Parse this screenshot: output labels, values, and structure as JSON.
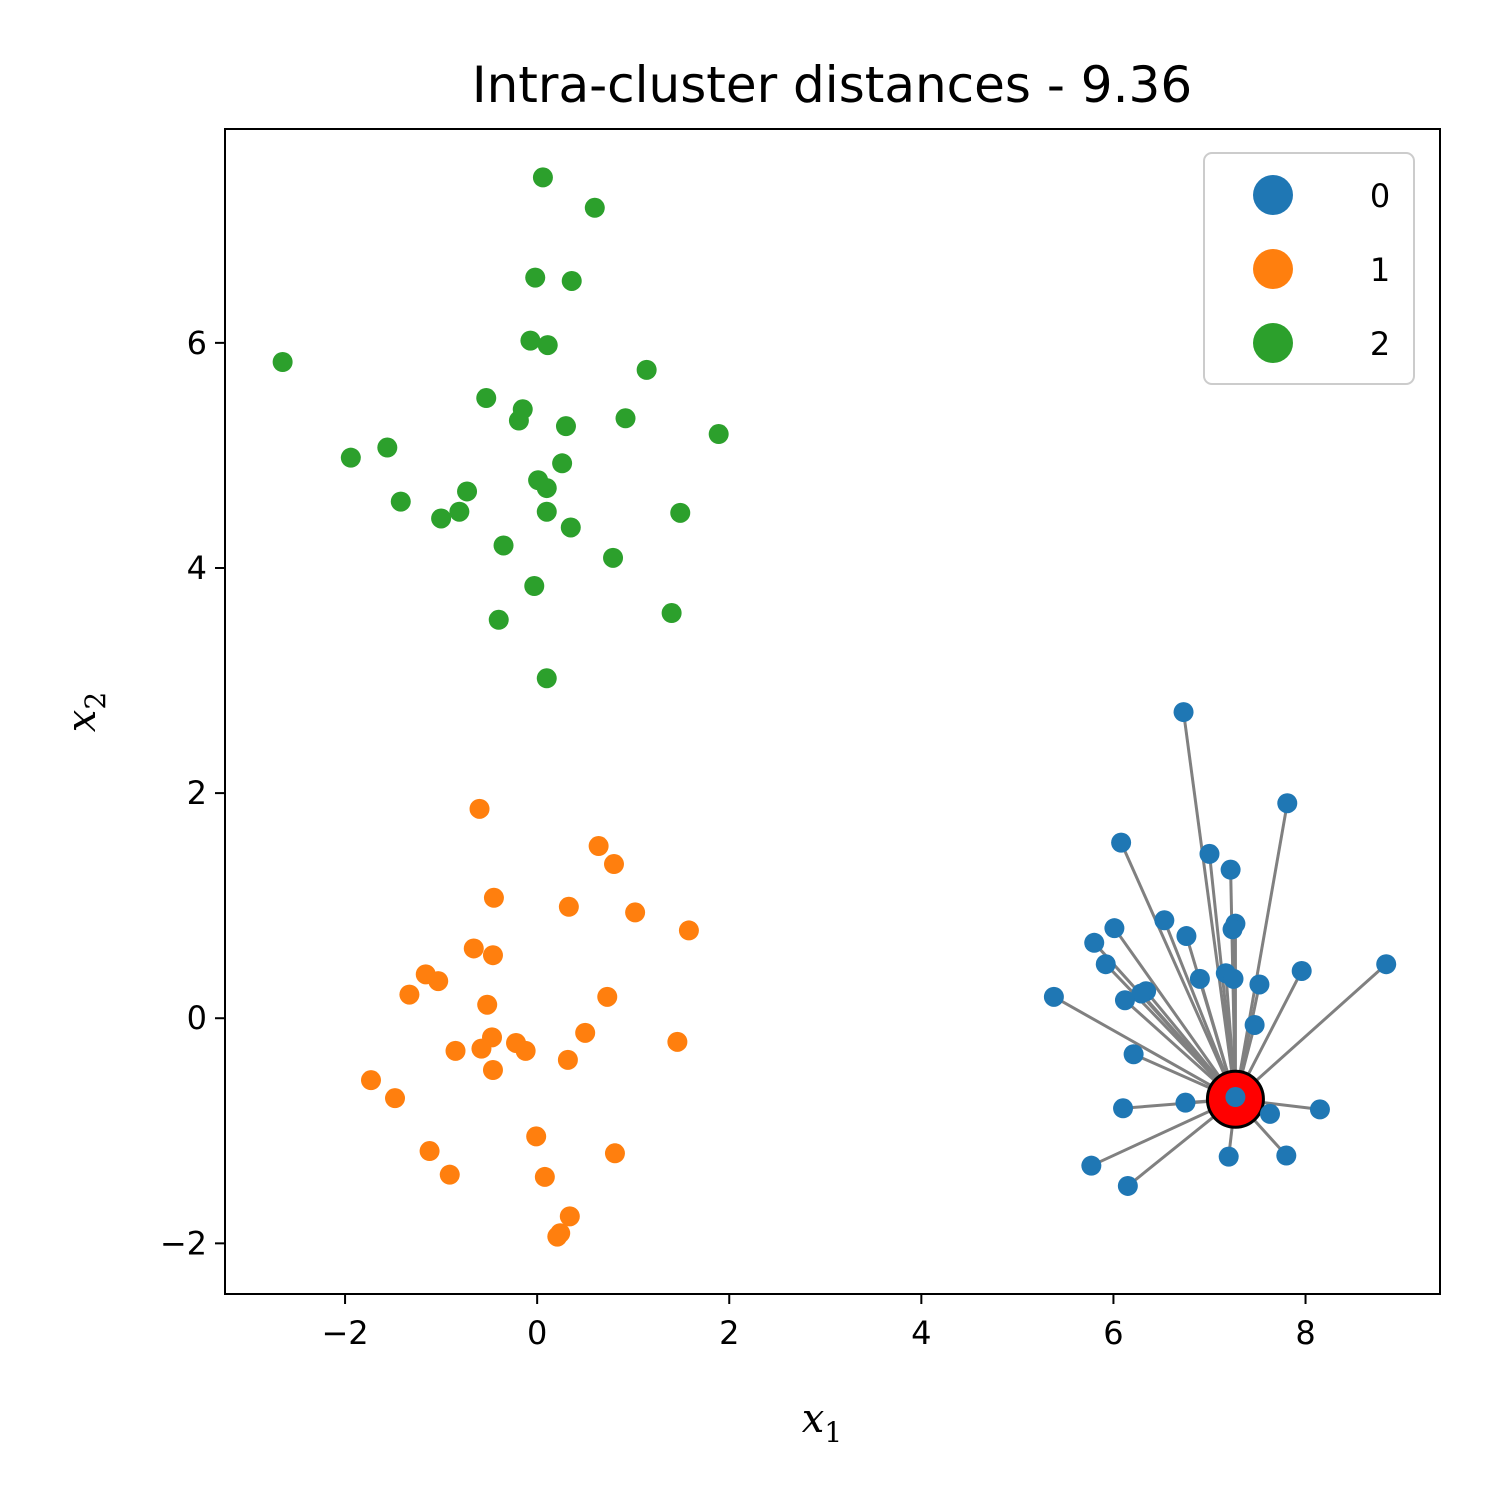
{
  "chart_data": {
    "type": "scatter",
    "title": "Intra-cluster distances - 9.36",
    "xlabel": "x",
    "xlabel_sub": "1",
    "ylabel": "x",
    "ylabel_sub": "2",
    "xlim": [
      -3.25,
      9.4
    ],
    "ylim": [
      -2.45,
      7.9
    ],
    "x_ticks": [
      -2,
      0,
      2,
      4,
      6,
      8
    ],
    "y_ticks": [
      -2,
      0,
      2,
      4,
      6
    ],
    "x_tick_labels": [
      "−2",
      "0",
      "2",
      "4",
      "6",
      "8"
    ],
    "y_tick_labels": [
      "−2",
      "0",
      "2",
      "4",
      "6"
    ],
    "grid": false,
    "legend_position": "top-right",
    "highlight_point": {
      "x": 7.27,
      "y": -0.72,
      "color": "#ff0000"
    },
    "link_color": "#808080",
    "series": [
      {
        "name": "0",
        "color": "#1f77b4",
        "points": [
          [
            6.73,
            2.72
          ],
          [
            7.81,
            1.91
          ],
          [
            6.08,
            1.56
          ],
          [
            7.0,
            1.46
          ],
          [
            7.22,
            1.32
          ],
          [
            6.53,
            0.87
          ],
          [
            7.27,
            0.84
          ],
          [
            7.24,
            0.79
          ],
          [
            6.01,
            0.8
          ],
          [
            6.76,
            0.73
          ],
          [
            5.8,
            0.67
          ],
          [
            5.92,
            0.48
          ],
          [
            7.17,
            0.4
          ],
          [
            7.25,
            0.35
          ],
          [
            6.9,
            0.35
          ],
          [
            7.96,
            0.42
          ],
          [
            7.52,
            0.3
          ],
          [
            8.84,
            0.48
          ],
          [
            6.34,
            0.24
          ],
          [
            6.29,
            0.22
          ],
          [
            5.38,
            0.19
          ],
          [
            6.12,
            0.16
          ],
          [
            7.47,
            -0.06
          ],
          [
            6.21,
            -0.32
          ],
          [
            7.27,
            -0.7
          ],
          [
            6.75,
            -0.75
          ],
          [
            6.1,
            -0.8
          ],
          [
            7.63,
            -0.85
          ],
          [
            8.15,
            -0.81
          ],
          [
            7.2,
            -1.23
          ],
          [
            7.8,
            -1.22
          ],
          [
            5.77,
            -1.31
          ],
          [
            6.15,
            -1.49
          ]
        ]
      },
      {
        "name": "1",
        "color": "#ff7f0e",
        "points": [
          [
            -0.6,
            1.86
          ],
          [
            0.64,
            1.53
          ],
          [
            0.8,
            1.37
          ],
          [
            -0.45,
            1.07
          ],
          [
            0.33,
            0.99
          ],
          [
            1.02,
            0.94
          ],
          [
            1.58,
            0.78
          ],
          [
            -0.66,
            0.62
          ],
          [
            -0.46,
            0.56
          ],
          [
            -1.16,
            0.39
          ],
          [
            -1.03,
            0.33
          ],
          [
            -1.33,
            0.21
          ],
          [
            0.73,
            0.19
          ],
          [
            -0.52,
            0.12
          ],
          [
            0.5,
            -0.13
          ],
          [
            -0.47,
            -0.17
          ],
          [
            -0.22,
            -0.22
          ],
          [
            1.46,
            -0.21
          ],
          [
            -0.58,
            -0.27
          ],
          [
            -0.85,
            -0.29
          ],
          [
            -0.12,
            -0.29
          ],
          [
            0.32,
            -0.37
          ],
          [
            -0.46,
            -0.46
          ],
          [
            -1.73,
            -0.55
          ],
          [
            -1.48,
            -0.71
          ],
          [
            -0.01,
            -1.05
          ],
          [
            -1.12,
            -1.18
          ],
          [
            0.81,
            -1.2
          ],
          [
            -0.91,
            -1.39
          ],
          [
            0.08,
            -1.41
          ],
          [
            0.34,
            -1.76
          ],
          [
            0.24,
            -1.91
          ],
          [
            0.21,
            -1.94
          ]
        ]
      },
      {
        "name": "2",
        "color": "#2ca02c",
        "points": [
          [
            0.06,
            7.47
          ],
          [
            0.6,
            7.2
          ],
          [
            -0.02,
            6.58
          ],
          [
            0.36,
            6.55
          ],
          [
            -2.65,
            5.83
          ],
          [
            -0.07,
            6.02
          ],
          [
            0.11,
            5.98
          ],
          [
            1.14,
            5.76
          ],
          [
            -0.53,
            5.51
          ],
          [
            -0.15,
            5.41
          ],
          [
            -0.19,
            5.31
          ],
          [
            0.3,
            5.26
          ],
          [
            0.92,
            5.33
          ],
          [
            1.89,
            5.19
          ],
          [
            -1.94,
            4.98
          ],
          [
            -1.56,
            5.07
          ],
          [
            0.26,
            4.93
          ],
          [
            0.01,
            4.78
          ],
          [
            0.1,
            4.71
          ],
          [
            -0.73,
            4.68
          ],
          [
            -1.42,
            4.59
          ],
          [
            -0.81,
            4.5
          ],
          [
            -1.0,
            4.44
          ],
          [
            0.1,
            4.5
          ],
          [
            1.49,
            4.49
          ],
          [
            0.35,
            4.36
          ],
          [
            -0.35,
            4.2
          ],
          [
            0.79,
            4.09
          ],
          [
            -0.03,
            3.84
          ],
          [
            -0.4,
            3.54
          ],
          [
            1.4,
            3.6
          ],
          [
            0.1,
            3.02
          ]
        ]
      }
    ]
  }
}
